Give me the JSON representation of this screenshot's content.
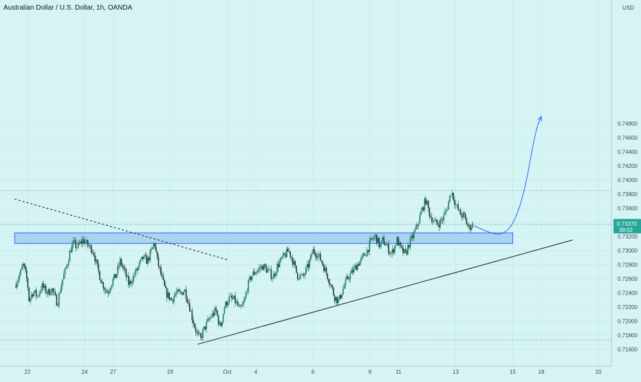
{
  "header": {
    "title": "Australian Dollar / U.S. Dollar, 1h, OANDA",
    "currency": "USD"
  },
  "price_tag": {
    "price": "0.73370",
    "countdown": "39:02",
    "color": "#26a69a"
  },
  "colors": {
    "background": "#d6f4f4",
    "candle_up": "#1f7a5a",
    "candle_down": "#1a3b33",
    "zone_fill": "#a9d4f0",
    "zone_stroke": "#2962ff",
    "projection": "#2962ff",
    "trendline": "#131722",
    "level_line": "#6b9b92",
    "current_line": "#26a69a"
  },
  "chart_data": {
    "type": "candlestick",
    "title": "Australian Dollar / U.S. Dollar, 1h, OANDA",
    "y_unit": "USD",
    "ylim": [
      0.715,
      0.75
    ],
    "y_ticks": [
      0.716,
      0.718,
      0.72,
      0.722,
      0.724,
      0.726,
      0.728,
      0.73,
      0.732,
      0.734,
      0.736,
      0.738,
      0.74,
      0.742,
      0.744,
      0.746,
      0.748
    ],
    "y_tick_labels": [
      "0.71600",
      "0.71800",
      "0.72000",
      "0.72200",
      "0.72400",
      "0.72600",
      "0.72800",
      "0.73000",
      "0.73200",
      "0.73400",
      "0.73600",
      "0.73800",
      "0.74000",
      "0.74200",
      "0.74400",
      "0.74600",
      "0.74800"
    ],
    "x_ticks": [
      {
        "label": "22",
        "t": 0.0
      },
      {
        "label": "24",
        "t": 2.0
      },
      {
        "label": "27",
        "t": 3.0
      },
      {
        "label": "29",
        "t": 5.0
      },
      {
        "label": "Oct",
        "t": 7.0
      },
      {
        "label": "4",
        "t": 8.0
      },
      {
        "label": "6",
        "t": 10.0
      },
      {
        "label": "8",
        "t": 12.0
      },
      {
        "label": "11",
        "t": 13.0
      },
      {
        "label": "13",
        "t": 15.0
      },
      {
        "label": "15",
        "t": 17.0
      },
      {
        "label": "18",
        "t": 18.0
      },
      {
        "label": "20",
        "t": 20.0
      }
    ],
    "price_path": [
      [
        -0.45,
        0.725
      ],
      [
        -0.25,
        0.7268
      ],
      [
        -0.15,
        0.728
      ],
      [
        0.0,
        0.7255
      ],
      [
        0.05,
        0.723
      ],
      [
        0.2,
        0.7242
      ],
      [
        0.35,
        0.7235
      ],
      [
        0.5,
        0.725
      ],
      [
        0.7,
        0.724
      ],
      [
        0.85,
        0.7245
      ],
      [
        1.05,
        0.7225
      ],
      [
        1.2,
        0.7255
      ],
      [
        1.35,
        0.7275
      ],
      [
        1.5,
        0.73
      ],
      [
        1.6,
        0.731
      ],
      [
        1.75,
        0.7305
      ],
      [
        1.95,
        0.7315
      ],
      [
        2.1,
        0.7308
      ],
      [
        2.3,
        0.73
      ],
      [
        2.45,
        0.7275
      ],
      [
        2.6,
        0.7255
      ],
      [
        2.8,
        0.724
      ],
      [
        2.95,
        0.7255
      ],
      [
        3.1,
        0.7265
      ],
      [
        3.25,
        0.7285
      ],
      [
        3.4,
        0.727
      ],
      [
        3.55,
        0.7252
      ],
      [
        3.7,
        0.7262
      ],
      [
        3.9,
        0.7278
      ],
      [
        4.05,
        0.729
      ],
      [
        4.2,
        0.7285
      ],
      [
        4.35,
        0.73
      ],
      [
        4.45,
        0.7312
      ],
      [
        4.55,
        0.7285
      ],
      [
        4.7,
        0.7262
      ],
      [
        4.85,
        0.724
      ],
      [
        5.05,
        0.723
      ],
      [
        5.2,
        0.724
      ],
      [
        5.35,
        0.7238
      ],
      [
        5.5,
        0.7245
      ],
      [
        5.65,
        0.7225
      ],
      [
        5.8,
        0.72
      ],
      [
        5.95,
        0.718
      ],
      [
        6.05,
        0.7175
      ],
      [
        6.2,
        0.719
      ],
      [
        6.4,
        0.7205
      ],
      [
        6.6,
        0.7215
      ],
      [
        6.75,
        0.719
      ],
      [
        6.9,
        0.722
      ],
      [
        7.05,
        0.7232
      ],
      [
        7.25,
        0.723
      ],
      [
        7.45,
        0.7215
      ],
      [
        7.6,
        0.7228
      ],
      [
        7.7,
        0.7248
      ],
      [
        7.85,
        0.7265
      ],
      [
        8.05,
        0.7272
      ],
      [
        8.25,
        0.7278
      ],
      [
        8.45,
        0.727
      ],
      [
        8.6,
        0.7262
      ],
      [
        8.75,
        0.7278
      ],
      [
        8.95,
        0.729
      ],
      [
        9.15,
        0.73
      ],
      [
        9.3,
        0.7285
      ],
      [
        9.45,
        0.7265
      ],
      [
        9.65,
        0.7262
      ],
      [
        9.85,
        0.728
      ],
      [
        10.0,
        0.73
      ],
      [
        10.15,
        0.7295
      ],
      [
        10.3,
        0.7285
      ],
      [
        10.45,
        0.727
      ],
      [
        10.6,
        0.7255
      ],
      [
        10.75,
        0.7235
      ],
      [
        10.9,
        0.7228
      ],
      [
        11.05,
        0.7245
      ],
      [
        11.2,
        0.726
      ],
      [
        11.35,
        0.7268
      ],
      [
        11.55,
        0.728
      ],
      [
        11.75,
        0.729
      ],
      [
        11.9,
        0.73
      ],
      [
        12.05,
        0.7315
      ],
      [
        12.2,
        0.732
      ],
      [
        12.35,
        0.7305
      ],
      [
        12.45,
        0.7315
      ],
      [
        12.6,
        0.7305
      ],
      [
        12.75,
        0.7295
      ],
      [
        12.85,
        0.7305
      ],
      [
        12.95,
        0.7315
      ],
      [
        13.1,
        0.73
      ],
      [
        13.25,
        0.7295
      ],
      [
        13.35,
        0.7308
      ],
      [
        13.5,
        0.732
      ],
      [
        13.65,
        0.7335
      ],
      [
        13.8,
        0.7355
      ],
      [
        13.95,
        0.7372
      ],
      [
        14.1,
        0.735
      ],
      [
        14.25,
        0.734
      ],
      [
        14.4,
        0.7338
      ],
      [
        14.55,
        0.7345
      ],
      [
        14.7,
        0.736
      ],
      [
        14.85,
        0.7385
      ],
      [
        15.0,
        0.7365
      ],
      [
        15.15,
        0.7352
      ],
      [
        15.3,
        0.7348
      ],
      [
        15.45,
        0.7332
      ],
      [
        15.6,
        0.7337
      ]
    ],
    "annotations": {
      "support_zone": {
        "t_start": -0.45,
        "t_end": 17.0,
        "y_low": 0.731,
        "y_high": 0.7325
      },
      "resistance_level": {
        "y": 0.7385
      },
      "low_level": {
        "y": 0.7173
      },
      "current_price": {
        "y": 0.7337
      },
      "ascending_trendline": {
        "t1": 5.95,
        "y1": 0.7167,
        "t2": 19.1,
        "y2": 0.7315
      },
      "descending_trendline": {
        "t1": -0.45,
        "y1": 0.7373,
        "t2": 7.0,
        "y2": 0.7287
      },
      "projection_path": [
        [
          15.65,
          0.7335
        ],
        [
          16.2,
          0.7325
        ],
        [
          16.6,
          0.7322
        ],
        [
          17.0,
          0.7335
        ],
        [
          17.4,
          0.738
        ],
        [
          17.8,
          0.747
        ],
        [
          18.0,
          0.749
        ]
      ]
    }
  }
}
